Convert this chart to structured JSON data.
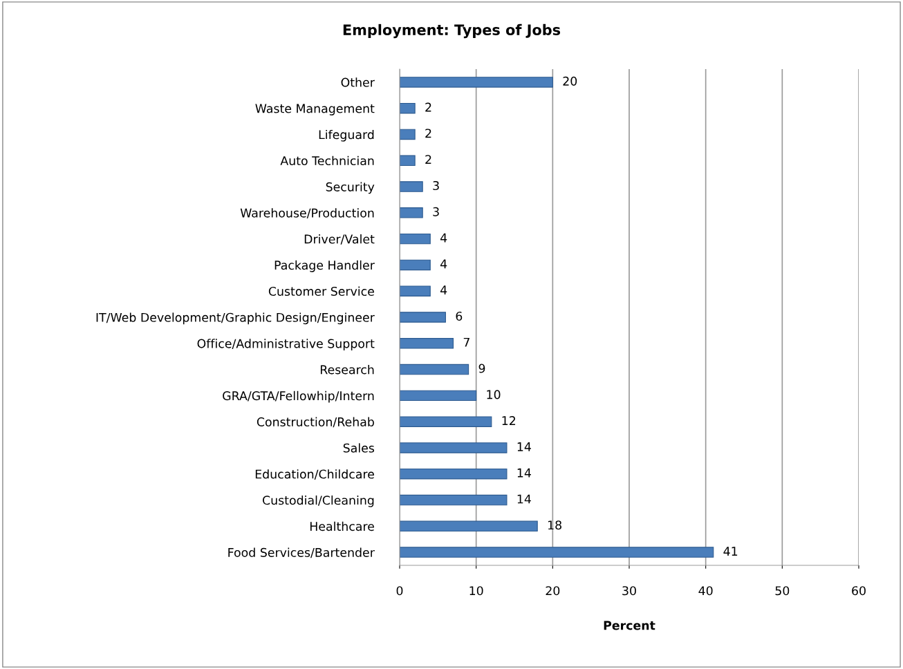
{
  "chart_data": {
    "type": "bar",
    "orientation": "horizontal",
    "title": "Employment: Types of Jobs",
    "xlabel": "Percent",
    "categories": [
      "Other",
      "Waste Management",
      "Lifeguard",
      "Auto Technician",
      "Security",
      "Warehouse/Production",
      "Driver/Valet",
      "Package Handler",
      "Customer Service",
      "IT/Web Development/Graphic Design/Engineer",
      "Office/Administrative Support",
      "Research",
      "GRA/GTA/Fellowhip/Intern",
      "Construction/Rehab",
      "Sales",
      "Education/Childcare",
      "Custodial/Cleaning",
      "Healthcare",
      "Food Services/Bartender"
    ],
    "values": [
      20,
      2,
      2,
      2,
      3,
      3,
      4,
      4,
      4,
      6,
      7,
      9,
      10,
      12,
      14,
      14,
      14,
      18,
      41
    ],
    "data_labels": true,
    "color": "#4a7ebb",
    "xlim": [
      0,
      60
    ],
    "xticks": [
      0,
      10,
      20,
      30,
      40,
      50,
      60
    ],
    "grid": "x"
  }
}
